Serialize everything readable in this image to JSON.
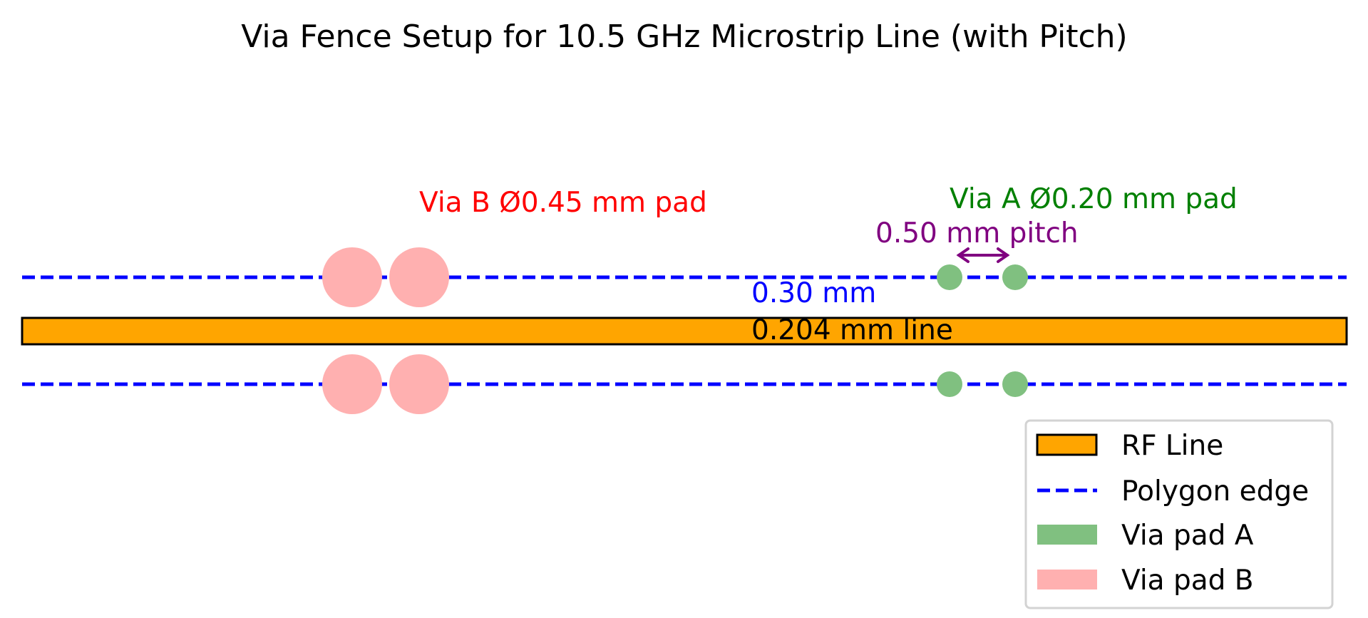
{
  "title": "Via Fence Setup for 10.5 GHz Microstrip Line (with Pitch)",
  "annotations": {
    "via_b": "Via B Ø0.45 mm pad",
    "via_a": "Via A Ø0.20 mm pad",
    "pitch": "0.50 mm pitch",
    "gap": "0.30 mm",
    "line_width": "0.204 mm line"
  },
  "legend": {
    "placement": "top-right",
    "items": [
      {
        "label": "RF Line",
        "kind": "patch",
        "color": "#ffa500",
        "edge": "#000000"
      },
      {
        "label": "Polygon edge",
        "kind": "dashed-line",
        "color": "#0000ff"
      },
      {
        "label": "Via pad A",
        "kind": "patch",
        "color": "#80c080"
      },
      {
        "label": "Via pad B",
        "kind": "patch",
        "color": "#ffb0b0"
      }
    ]
  },
  "colors": {
    "rf_line": "#ffa500",
    "polygon_edge": "#0000ff",
    "via_a": "#80c080",
    "via_b": "#ffb0b0",
    "via_b_label": "#ff0000",
    "via_a_label": "#008000",
    "pitch_label": "#800080",
    "gap_label": "#0000ff"
  }
}
